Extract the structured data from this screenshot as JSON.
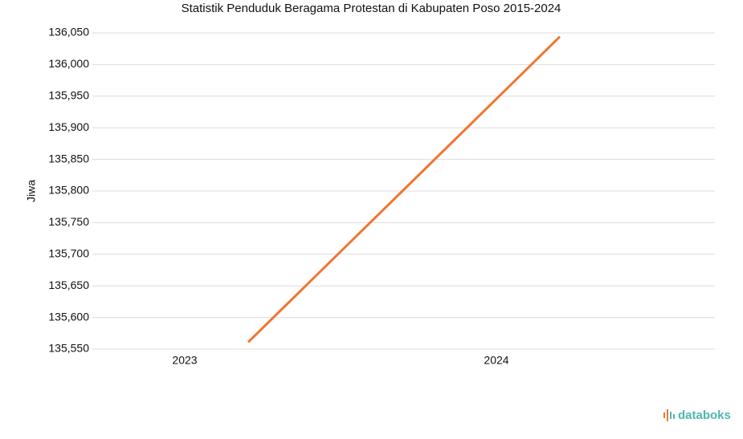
{
  "chart_data": {
    "type": "line",
    "title": "Statistik Penduduk Beragama Protestan di Kabupaten Poso 2015-2024",
    "y_label": "Jiwa",
    "categories": [
      "2023",
      "2024"
    ],
    "series": [
      {
        "name": "Jiwa",
        "color": "#f07530",
        "values": [
          135561,
          136044
        ]
      }
    ],
    "ylim": [
      135550,
      136050
    ],
    "yticks": [
      {
        "value": 135550,
        "label": "135,550"
      },
      {
        "value": 135600,
        "label": "135,600"
      },
      {
        "value": 135650,
        "label": "135,650"
      },
      {
        "value": 135700,
        "label": "135,700"
      },
      {
        "value": 135750,
        "label": "135,750"
      },
      {
        "value": 135800,
        "label": "135,800"
      },
      {
        "value": 135850,
        "label": "135,850"
      },
      {
        "value": 135900,
        "label": "135,900"
      },
      {
        "value": 135950,
        "label": "135,950"
      },
      {
        "value": 136000,
        "label": "136,000"
      },
      {
        "value": 136050,
        "label": "136,050"
      }
    ],
    "grid": true,
    "watermark": "databoks"
  }
}
